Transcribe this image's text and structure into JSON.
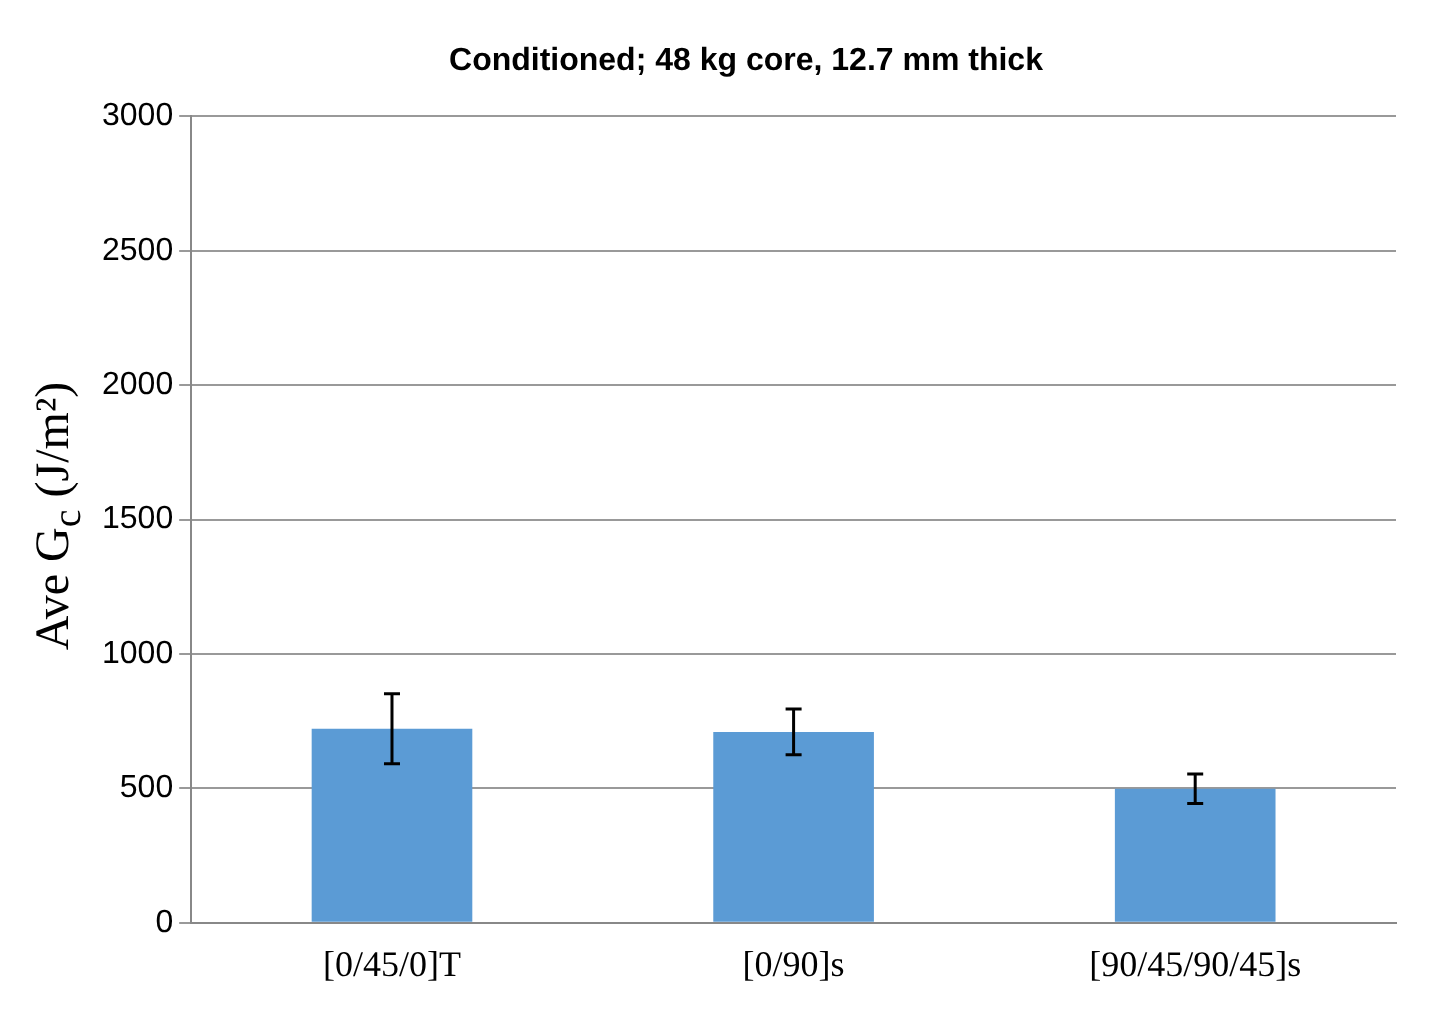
{
  "chart_data": {
    "type": "bar",
    "title": "Conditioned; 48 kg core, 12.7 mm thick",
    "ylabel": "Ave G$_{c}$ (J/m²)",
    "categories": [
      "[0/45/0]T",
      "[0/90]s",
      "[90/45/90/45]s"
    ],
    "values": [
      722,
      710,
      499
    ],
    "errors": [
      130,
      85,
      55
    ],
    "color": "#5b9bd5",
    "ylim": [
      0,
      3000
    ],
    "yticks": [
      0,
      500,
      1000,
      1500,
      2000,
      2500,
      3000
    ],
    "grid": "y",
    "legend": false
  }
}
